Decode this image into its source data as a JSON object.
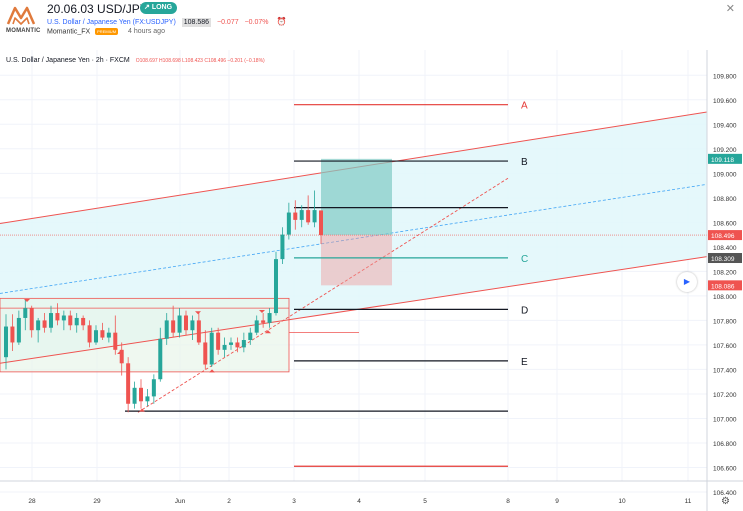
{
  "header": {
    "logo_text": "MOMANTIC",
    "title": "20.06.03 USD/JPY",
    "badge": "LONG",
    "symbol_name": "U.S. Dollar / Japanese Yen (FX:USDJPY)",
    "price": "108.586",
    "change": "−0.077",
    "change_pct": "−0.07%",
    "author": "Momantic_FX",
    "author_badge": "PREMIUM",
    "time_ago": "4 hours ago"
  },
  "colors": {
    "up": "#26a69a",
    "down": "#ef5350",
    "channel_fill": "#e0f7fa",
    "box_fill": "#e8f5e9",
    "target_fill": "#b2dfdb",
    "stop_fill": "#f2d0d0",
    "accent_blue": "#2962ff"
  },
  "chart_data": {
    "type": "candlestick",
    "legend": {
      "symbol": "U.S. Dollar / Japanese Yen · 2h · FXCM",
      "ohlc": "O108.697  H108.698  L108.423  C108.496  −0.201 (−0.18%)"
    },
    "ylim": [
      106.4,
      109.9
    ],
    "y_ticks": [
      "109.800",
      "109.600",
      "109.400",
      "109.200",
      "109.000",
      "108.800",
      "108.600",
      "108.400",
      "108.200",
      "108.000",
      "107.800",
      "107.600",
      "107.400",
      "107.200",
      "107.000",
      "106.800",
      "106.600",
      "106.400"
    ],
    "x_ticks": [
      "28",
      "29",
      "Jun",
      "2",
      "3",
      "4",
      "5",
      "8",
      "9",
      "10",
      "11"
    ],
    "price_tags": [
      {
        "value": 109.118,
        "label": "109.118",
        "color": "#26a69a"
      },
      {
        "value": 108.496,
        "label": "108.496",
        "color": "#ef5350"
      },
      {
        "value": 108.309,
        "label": "108.309",
        "color": "#555555"
      },
      {
        "value": 108.086,
        "label": "108.086",
        "color": "#ef5350"
      }
    ],
    "levels": [
      {
        "label": "A",
        "value": 109.56,
        "color": "#e53935"
      },
      {
        "label": "B",
        "value": 109.1,
        "color": "#131722"
      },
      {
        "label": "",
        "value": 108.72,
        "color": "#131722"
      },
      {
        "label": "C",
        "value": 108.31,
        "color": "#26a69a"
      },
      {
        "label": "D",
        "value": 107.89,
        "color": "#131722"
      },
      {
        "label": "E",
        "value": 107.47,
        "color": "#131722"
      },
      {
        "label": "",
        "value": 107.06,
        "color": "#131722"
      },
      {
        "label": "",
        "value": 106.61,
        "color": "#e53935"
      }
    ],
    "candles": [
      {
        "o": 107.5,
        "h": 107.85,
        "l": 107.4,
        "c": 107.75
      },
      {
        "o": 107.75,
        "h": 107.85,
        "l": 107.55,
        "c": 107.62
      },
      {
        "o": 107.62,
        "h": 107.88,
        "l": 107.6,
        "c": 107.82
      },
      {
        "o": 107.82,
        "h": 107.97,
        "l": 107.72,
        "c": 107.9
      },
      {
        "o": 107.9,
        "h": 107.92,
        "l": 107.66,
        "c": 107.72
      },
      {
        "o": 107.72,
        "h": 107.82,
        "l": 107.62,
        "c": 107.8
      },
      {
        "o": 107.8,
        "h": 107.86,
        "l": 107.7,
        "c": 107.74
      },
      {
        "o": 107.74,
        "h": 107.92,
        "l": 107.7,
        "c": 107.86
      },
      {
        "o": 107.86,
        "h": 107.94,
        "l": 107.76,
        "c": 107.8
      },
      {
        "o": 107.8,
        "h": 107.88,
        "l": 107.72,
        "c": 107.84
      },
      {
        "o": 107.84,
        "h": 107.88,
        "l": 107.72,
        "c": 107.76
      },
      {
        "o": 107.76,
        "h": 107.86,
        "l": 107.7,
        "c": 107.82
      },
      {
        "o": 107.82,
        "h": 107.84,
        "l": 107.72,
        "c": 107.76
      },
      {
        "o": 107.76,
        "h": 107.8,
        "l": 107.58,
        "c": 107.62
      },
      {
        "o": 107.62,
        "h": 107.76,
        "l": 107.6,
        "c": 107.72
      },
      {
        "o": 107.72,
        "h": 107.78,
        "l": 107.64,
        "c": 107.66
      },
      {
        "o": 107.66,
        "h": 107.74,
        "l": 107.62,
        "c": 107.7
      },
      {
        "o": 107.7,
        "h": 107.84,
        "l": 107.52,
        "c": 107.56
      },
      {
        "o": 107.56,
        "h": 107.62,
        "l": 107.35,
        "c": 107.45
      },
      {
        "o": 107.45,
        "h": 107.5,
        "l": 107.05,
        "c": 107.12
      },
      {
        "o": 107.12,
        "h": 107.3,
        "l": 107.08,
        "c": 107.25
      },
      {
        "o": 107.25,
        "h": 107.32,
        "l": 107.08,
        "c": 107.14
      },
      {
        "o": 107.14,
        "h": 107.24,
        "l": 107.1,
        "c": 107.18
      },
      {
        "o": 107.18,
        "h": 107.36,
        "l": 107.12,
        "c": 107.32
      },
      {
        "o": 107.32,
        "h": 107.74,
        "l": 107.3,
        "c": 107.65
      },
      {
        "o": 107.65,
        "h": 107.86,
        "l": 107.6,
        "c": 107.8
      },
      {
        "o": 107.8,
        "h": 107.92,
        "l": 107.66,
        "c": 107.7
      },
      {
        "o": 107.7,
        "h": 107.9,
        "l": 107.66,
        "c": 107.84
      },
      {
        "o": 107.84,
        "h": 107.88,
        "l": 107.68,
        "c": 107.72
      },
      {
        "o": 107.72,
        "h": 107.84,
        "l": 107.64,
        "c": 107.8
      },
      {
        "o": 107.8,
        "h": 107.86,
        "l": 107.6,
        "c": 107.62
      },
      {
        "o": 107.62,
        "h": 107.72,
        "l": 107.4,
        "c": 107.44
      },
      {
        "o": 107.44,
        "h": 107.74,
        "l": 107.42,
        "c": 107.7
      },
      {
        "o": 107.7,
        "h": 107.74,
        "l": 107.52,
        "c": 107.56
      },
      {
        "o": 107.56,
        "h": 107.66,
        "l": 107.5,
        "c": 107.6
      },
      {
        "o": 107.6,
        "h": 107.66,
        "l": 107.56,
        "c": 107.62
      },
      {
        "o": 107.62,
        "h": 107.66,
        "l": 107.54,
        "c": 107.58
      },
      {
        "o": 107.58,
        "h": 107.7,
        "l": 107.54,
        "c": 107.64
      },
      {
        "o": 107.64,
        "h": 107.74,
        "l": 107.6,
        "c": 107.7
      },
      {
        "o": 107.7,
        "h": 107.84,
        "l": 107.68,
        "c": 107.8
      },
      {
        "o": 107.8,
        "h": 107.86,
        "l": 107.74,
        "c": 107.78
      },
      {
        "o": 107.78,
        "h": 107.9,
        "l": 107.74,
        "c": 107.86
      },
      {
        "o": 107.86,
        "h": 108.36,
        "l": 107.84,
        "c": 108.3
      },
      {
        "o": 108.3,
        "h": 108.56,
        "l": 108.26,
        "c": 108.5
      },
      {
        "o": 108.5,
        "h": 108.76,
        "l": 108.46,
        "c": 108.68
      },
      {
        "o": 108.68,
        "h": 108.78,
        "l": 108.54,
        "c": 108.62
      },
      {
        "o": 108.62,
        "h": 108.74,
        "l": 108.56,
        "c": 108.7
      },
      {
        "o": 108.7,
        "h": 108.82,
        "l": 108.58,
        "c": 108.6
      },
      {
        "o": 108.6,
        "h": 108.86,
        "l": 108.56,
        "c": 108.7
      },
      {
        "o": 108.697,
        "h": 108.698,
        "l": 108.423,
        "c": 108.496
      }
    ]
  }
}
